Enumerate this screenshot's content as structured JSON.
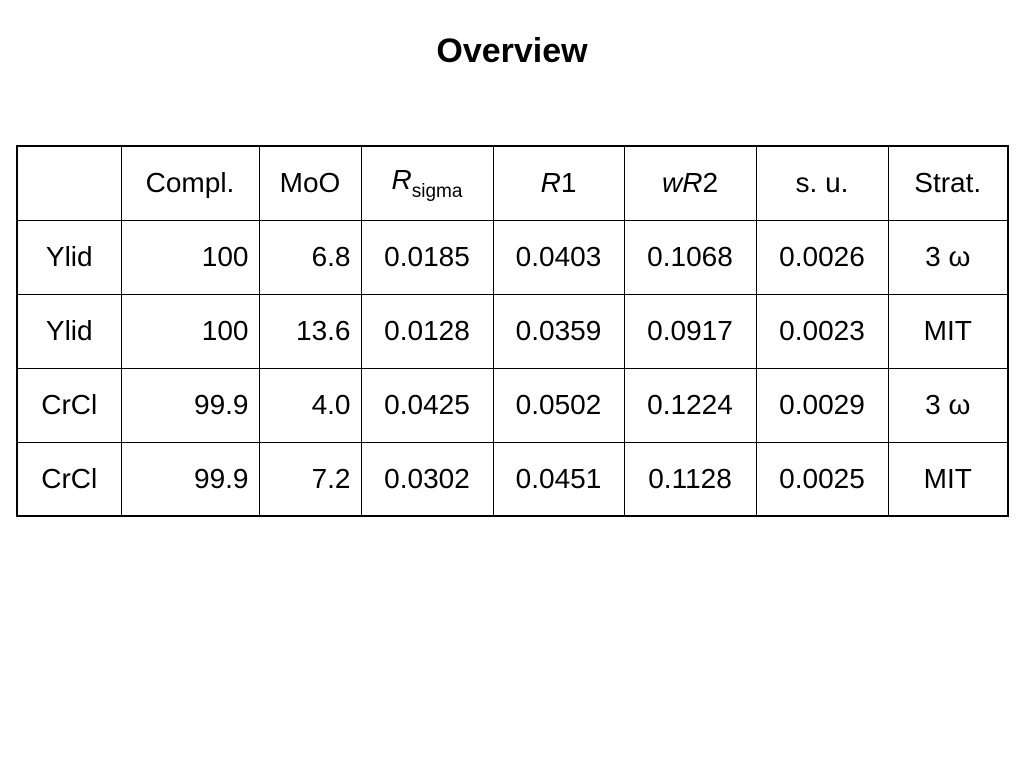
{
  "title": "Overview",
  "table": {
    "header": [
      [
        {
          "text": "Compl."
        }
      ],
      [
        {
          "text": "MoO"
        }
      ],
      [
        {
          "text": "R",
          "style": "italic"
        },
        {
          "text": "sigma",
          "style": "sub"
        }
      ],
      [
        {
          "text": "R",
          "style": "italic"
        },
        {
          "text": "1"
        }
      ],
      [
        {
          "text": "wR",
          "style": "italic"
        },
        {
          "text": "2"
        }
      ],
      [
        {
          "text": "s. u."
        }
      ],
      [
        {
          "text": "Strat."
        }
      ]
    ],
    "align": [
      "right",
      "right",
      "center",
      "center",
      "center",
      "center",
      "center"
    ],
    "rows": [
      {
        "label": "Ylid",
        "cells": [
          "100",
          "6.8",
          "0.0185",
          "0.0403",
          "0.1068",
          "0.0026",
          "3 ω"
        ]
      },
      {
        "label": "Ylid",
        "cells": [
          "100",
          "13.6",
          "0.0128",
          "0.0359",
          "0.0917",
          "0.0023",
          "MIT"
        ]
      },
      {
        "label": "CrCl",
        "cells": [
          "99.9",
          "4.0",
          "0.0425",
          "0.0502",
          "0.1224",
          "0.0029",
          "3 ω"
        ]
      },
      {
        "label": "CrCl",
        "cells": [
          "99.9",
          "7.2",
          "0.0302",
          "0.0451",
          "0.1128",
          "0.0025",
          "MIT"
        ]
      }
    ]
  }
}
